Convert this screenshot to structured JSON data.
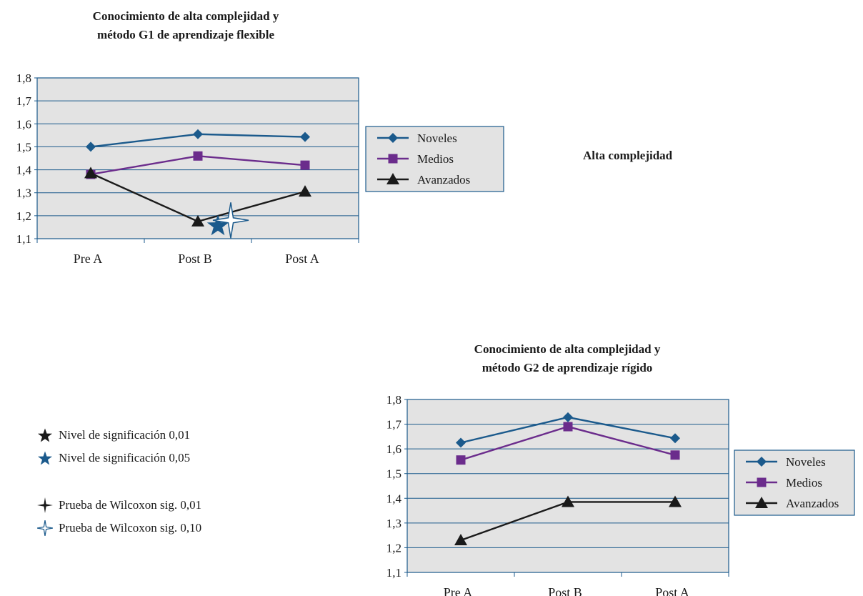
{
  "chart_data": [
    {
      "type": "line",
      "title": [
        "Conocimiento de alta complejidad y",
        "método G1 de aprendizaje flexible"
      ],
      "categories": [
        "Pre A",
        "Post B",
        "Post A"
      ],
      "yticks": [
        "1,1",
        "1,2",
        "1,3",
        "1,4",
        "1,5",
        "1,6",
        "1,7",
        "1,8"
      ],
      "ylim": [
        1.1,
        1.8
      ],
      "grid": true,
      "legend_position": "right",
      "series": [
        {
          "name": "Noveles",
          "values": [
            1.5,
            1.555,
            1.543
          ],
          "color": "#1b5a8c",
          "marker": "diamond"
        },
        {
          "name": "Medios",
          "values": [
            1.38,
            1.46,
            1.42
          ],
          "color": "#6b2c8c",
          "marker": "square"
        },
        {
          "name": "Avanzados",
          "values": [
            1.385,
            1.175,
            1.305
          ],
          "color": "#1a1a1a",
          "marker": "triangle"
        }
      ],
      "annotations": [
        {
          "symbol": "star-blue",
          "category": "Post B",
          "value": 1.155,
          "color": "#1b5a8c"
        },
        {
          "symbol": "sparkle-outline",
          "category": "Post B",
          "value": 1.18,
          "color": "#1b5a8c"
        }
      ]
    },
    {
      "type": "line",
      "title": [
        "Conocimiento de alta complejidad y",
        "método G2 de aprendizaje rígido"
      ],
      "categories": [
        "Pre A",
        "Post B",
        "Post A"
      ],
      "yticks": [
        "1,1",
        "1,2",
        "1,3",
        "1,4",
        "1,5",
        "1,6",
        "1,7",
        "1,8"
      ],
      "ylim": [
        1.1,
        1.8
      ],
      "grid": true,
      "legend_position": "right",
      "series": [
        {
          "name": "Noveles",
          "values": [
            1.625,
            1.728,
            1.643
          ],
          "color": "#1b5a8c",
          "marker": "diamond"
        },
        {
          "name": "Medios",
          "values": [
            1.555,
            1.69,
            1.575
          ],
          "color": "#6b2c8c",
          "marker": "square"
        },
        {
          "name": "Avanzados",
          "values": [
            1.23,
            1.385,
            1.385
          ],
          "color": "#1a1a1a",
          "marker": "triangle"
        }
      ],
      "annotations": []
    }
  ],
  "side_label": "Alta complejidad",
  "key": [
    {
      "symbol": "star",
      "color": "#1a1a1a",
      "label": "Nivel de significación 0,01"
    },
    {
      "symbol": "star",
      "color": "#1b5a8c",
      "label": "Nivel de significación 0,05"
    },
    {
      "symbol": "sparkle",
      "color": "#1a1a1a",
      "label": "Prueba de Wilcoxon sig. 0,01"
    },
    {
      "symbol": "sparkle-outline",
      "color": "#1b5a8c",
      "label": "Prueba de Wilcoxon sig. 0,10"
    }
  ]
}
